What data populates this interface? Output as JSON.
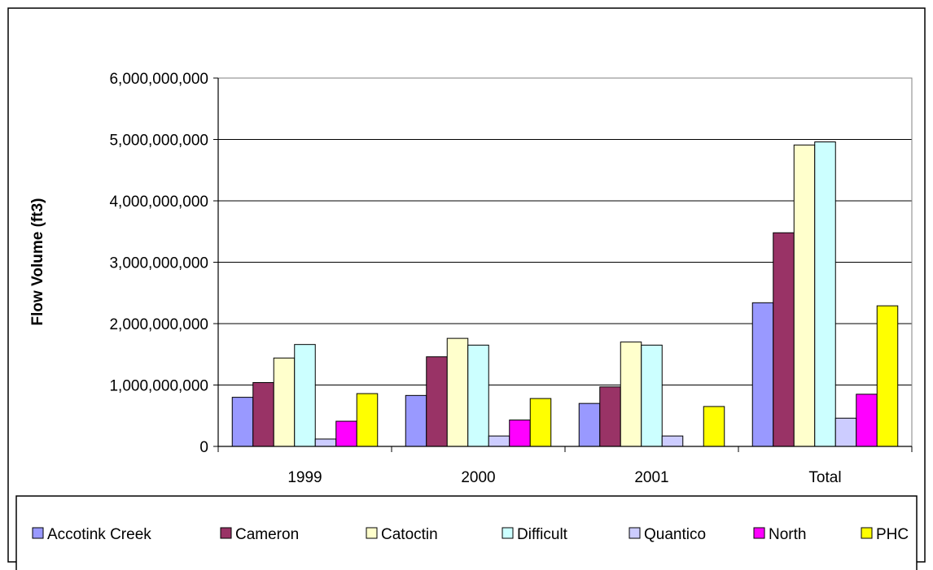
{
  "chart_data": {
    "type": "bar",
    "title": "",
    "xlabel": "",
    "ylabel": "Flow Volume (ft3)",
    "ylim": [
      0,
      6000000000
    ],
    "yticks": [
      0,
      1000000000,
      2000000000,
      3000000000,
      4000000000,
      5000000000,
      6000000000
    ],
    "ytick_labels": [
      "0",
      "1,000,000,000",
      "2,000,000,000",
      "3,000,000,000",
      "4,000,000,000",
      "5,000,000,000",
      "6,000,000,000"
    ],
    "grid": true,
    "legend_position": "bottom",
    "categories": [
      "1999",
      "2000",
      "2001",
      "Total"
    ],
    "series": [
      {
        "name": "Accotink Creek",
        "color": "#9999ff",
        "values": [
          800000000,
          830000000,
          700000000,
          2340000000
        ]
      },
      {
        "name": "Cameron",
        "color": "#993366",
        "values": [
          1040000000,
          1460000000,
          970000000,
          3480000000
        ]
      },
      {
        "name": "Catoctin",
        "color": "#ffffcc",
        "values": [
          1440000000,
          1760000000,
          1700000000,
          4910000000
        ]
      },
      {
        "name": "Difficult",
        "color": "#ccffff",
        "values": [
          1660000000,
          1650000000,
          1650000000,
          4960000000
        ]
      },
      {
        "name": "Quantico",
        "color": "#ccccff",
        "values": [
          120000000,
          170000000,
          170000000,
          460000000
        ]
      },
      {
        "name": "North",
        "color": "#ff00ff",
        "values": [
          410000000,
          430000000,
          0,
          850000000
        ]
      },
      {
        "name": "PHC",
        "color": "#ffff00",
        "values": [
          860000000,
          780000000,
          650000000,
          2290000000
        ]
      }
    ]
  }
}
